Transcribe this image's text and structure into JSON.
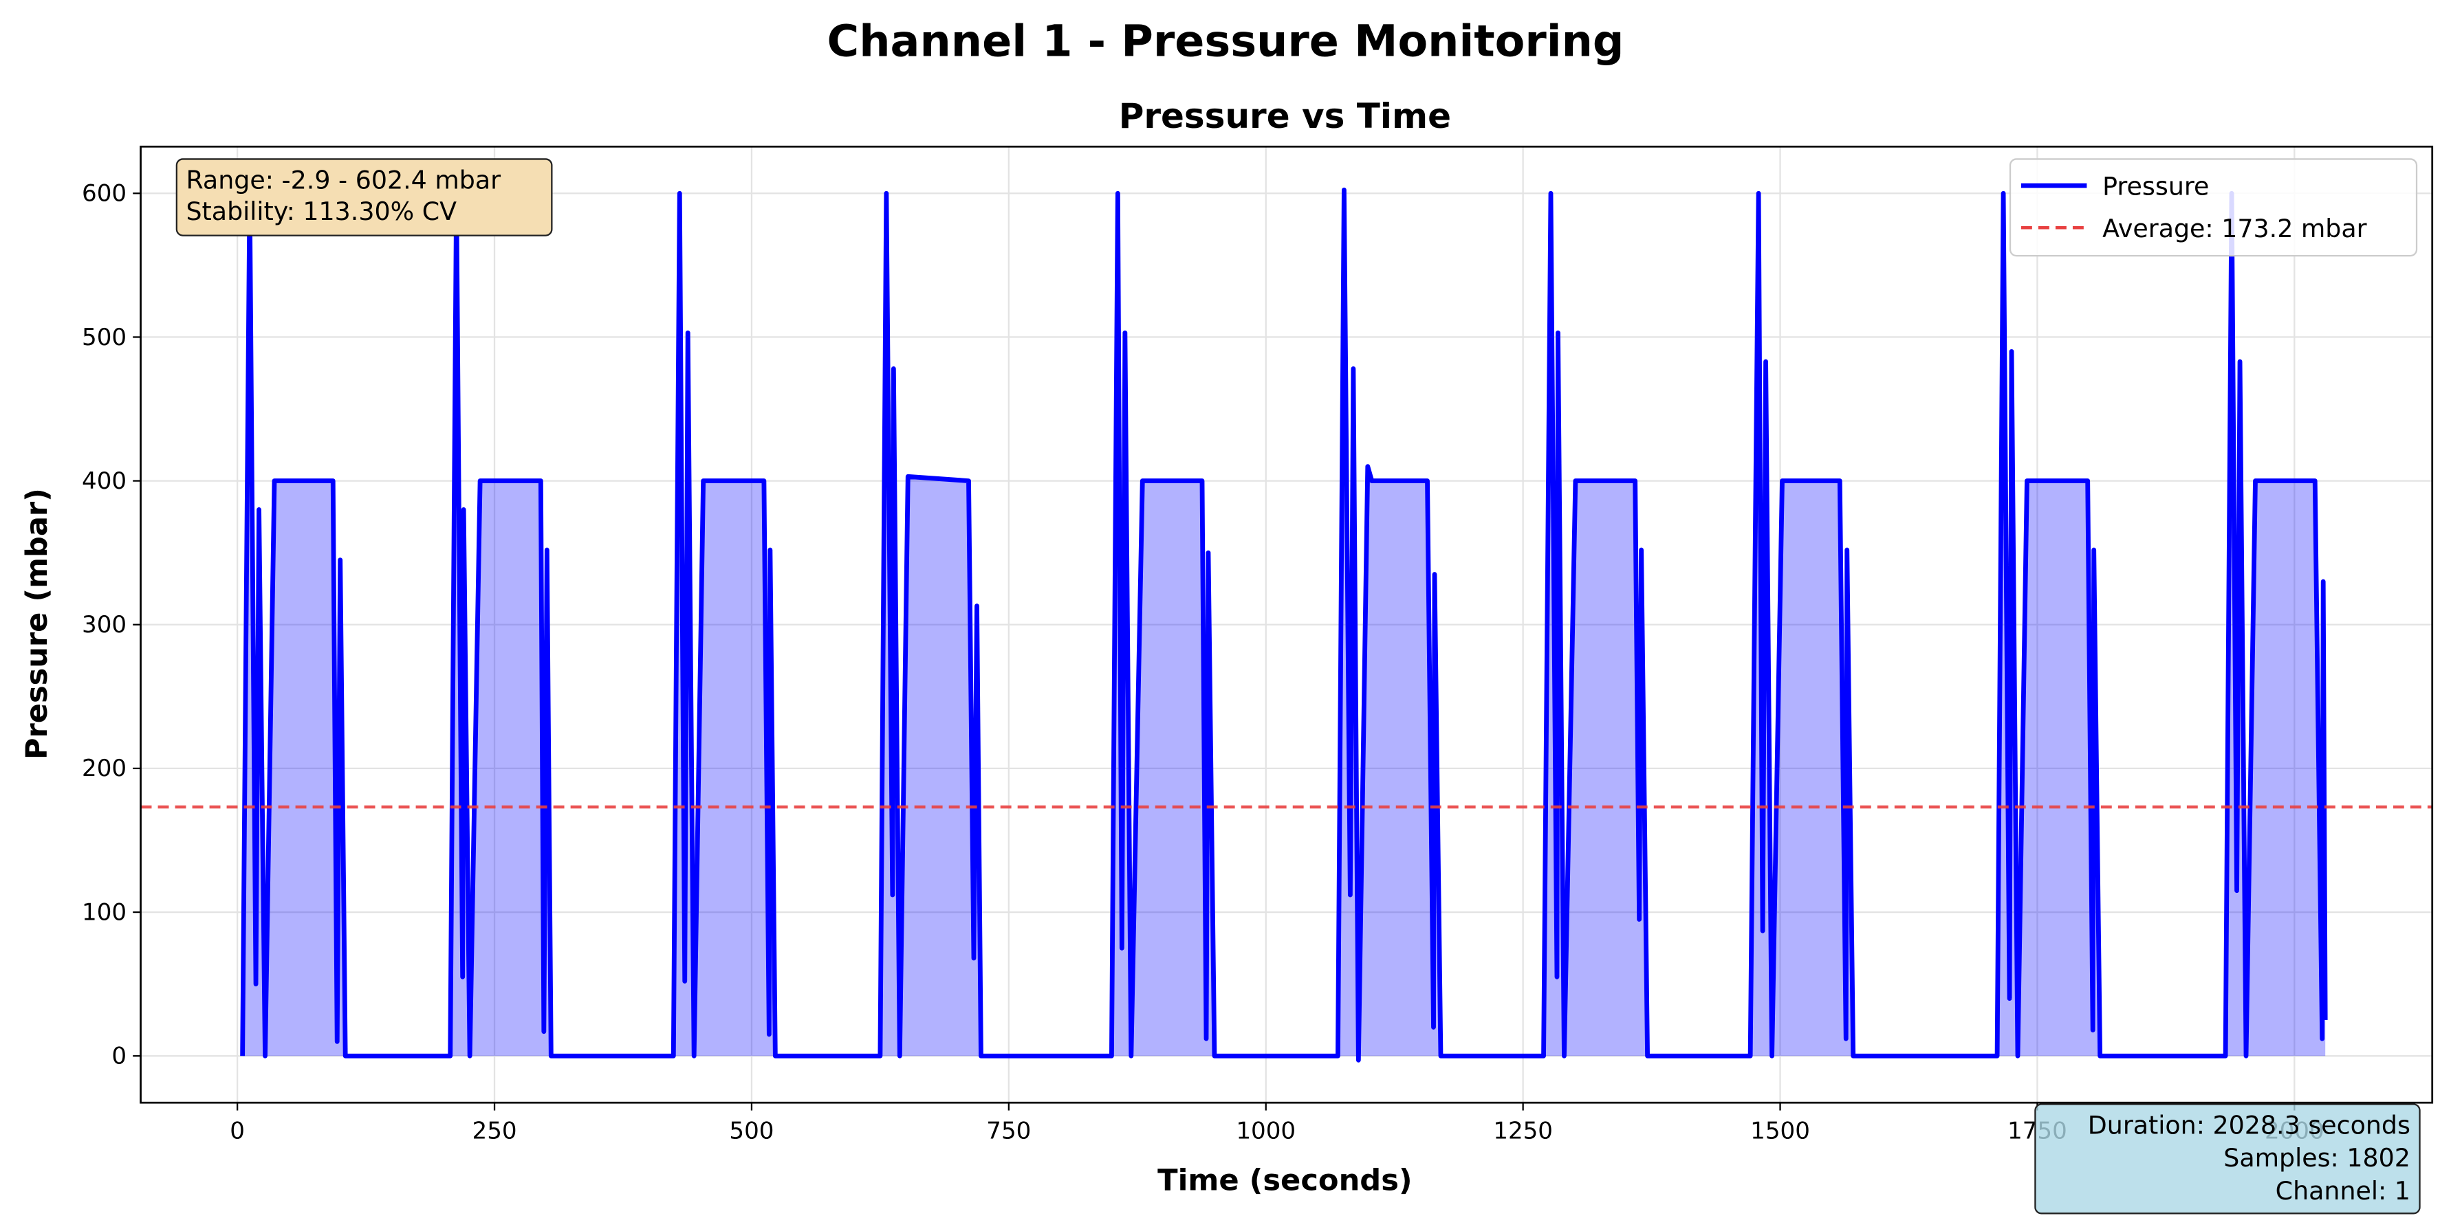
{
  "chart_data": {
    "type": "line",
    "suptitle": "Channel 1 - Pressure Monitoring",
    "title": "Pressure vs Time",
    "xlabel": "Time (seconds)",
    "ylabel": "Pressure (mbar)",
    "x": [
      5,
      12,
      18,
      21,
      27,
      36,
      93,
      97,
      100,
      105,
      207,
      213,
      219,
      220,
      226,
      236,
      295,
      298,
      301,
      305,
      424,
      430,
      435,
      438,
      444,
      453,
      512,
      517,
      518,
      523,
      625,
      631,
      637,
      638,
      644,
      652,
      711,
      716,
      719,
      723,
      850,
      856,
      860,
      863,
      869,
      880,
      938,
      942,
      944,
      950,
      1070,
      1076,
      1082,
      1085,
      1090,
      1099,
      1103,
      1157,
      1163,
      1164,
      1170,
      1270,
      1277,
      1283,
      1284,
      1290,
      1301,
      1359,
      1363,
      1365,
      1371,
      1471,
      1479,
      1483,
      1486,
      1492,
      1502,
      1558,
      1564,
      1565,
      1571,
      1711,
      1717,
      1723,
      1725,
      1731,
      1740,
      1799,
      1804,
      1805,
      1811,
      1933,
      1939,
      1944,
      1947,
      1953,
      1962,
      2020,
      2027,
      2028,
      2030
    ],
    "series": [
      {
        "name": "Pressure",
        "color": "#0000ff",
        "fill": true,
        "values": [
          0,
          600,
          50,
          380,
          0,
          400,
          400,
          10,
          345,
          0,
          0,
          600,
          55,
          380,
          0,
          400,
          400,
          17,
          352,
          0,
          0,
          600,
          52,
          503,
          0,
          400,
          400,
          15,
          352,
          0,
          0,
          600,
          112,
          478,
          0,
          403,
          400,
          68,
          313,
          0,
          0,
          600,
          75,
          503,
          0,
          400,
          400,
          12,
          350,
          0,
          0,
          602.4,
          112,
          478,
          -2.9,
          410,
          400,
          400,
          20,
          335,
          0,
          0,
          600,
          55,
          503,
          0,
          400,
          400,
          95,
          352,
          0,
          0,
          600,
          87,
          483,
          0,
          400,
          400,
          12,
          352,
          0,
          0,
          600,
          40,
          490,
          0,
          400,
          400,
          18,
          352,
          0,
          0,
          600,
          115,
          483,
          0,
          400,
          400,
          12,
          330,
          25
        ]
      }
    ],
    "hlines": [
      {
        "name": "Average: 173.2 mbar",
        "value": 173.2,
        "color": "#e84040"
      }
    ],
    "stats_box": [
      "Range: -2.9 - 602.4 mbar",
      "Stability: 113.30% CV"
    ],
    "info_box": [
      "Duration: 2028.3 seconds",
      "Samples: 1802",
      "Channel: 1"
    ],
    "xlim": [
      -94,
      2134
    ],
    "ylim": [
      -32.5,
      632.5
    ],
    "xticks": [
      0,
      250,
      500,
      750,
      1000,
      1250,
      1500,
      1750,
      2000
    ],
    "yticks": [
      0,
      100,
      200,
      300,
      400,
      500,
      600
    ],
    "grid": true,
    "legend": "upper right"
  }
}
